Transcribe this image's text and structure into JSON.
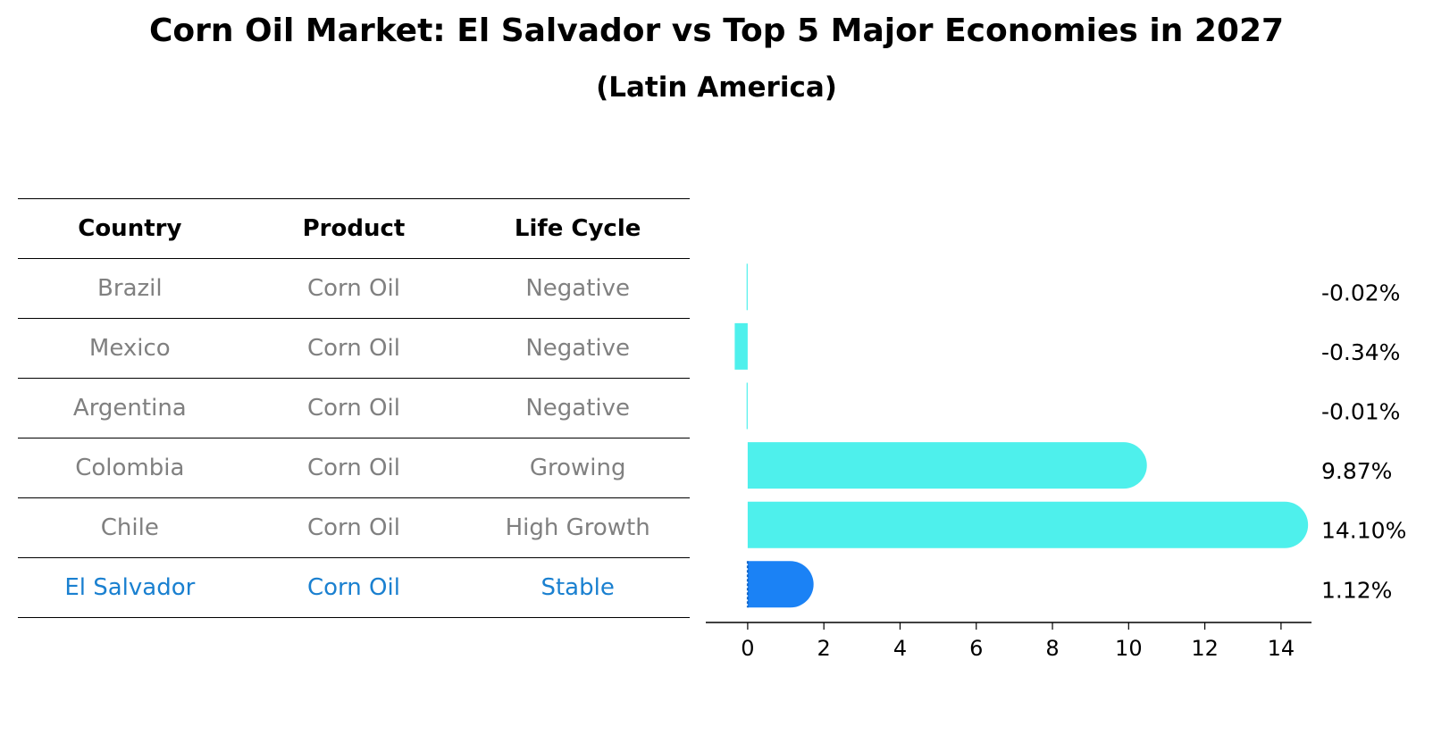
{
  "title": "Corn Oil Market: El Salvador vs Top 5 Major Economies in 2027",
  "subtitle": "(Latin America)",
  "table": {
    "headers": [
      "Country",
      "Product",
      "Life Cycle"
    ],
    "rows": [
      {
        "country": "Brazil",
        "product": "Corn Oil",
        "life_cycle": "Negative"
      },
      {
        "country": "Mexico",
        "product": "Corn Oil",
        "life_cycle": "Negative"
      },
      {
        "country": "Argentina",
        "product": "Corn Oil",
        "life_cycle": "Negative"
      },
      {
        "country": "Colombia",
        "product": "Corn Oil",
        "life_cycle": "Growing"
      },
      {
        "country": "Chile",
        "product": "Corn Oil",
        "life_cycle": "High Growth"
      },
      {
        "country": "El Salvador",
        "product": "Corn Oil",
        "life_cycle": "Stable"
      }
    ]
  },
  "colors": {
    "bar": "#4ef0ec",
    "highlight": "#1b82f5",
    "highlight_text": "#1a80d0",
    "muted_text": "#808080"
  },
  "chart_data": {
    "type": "bar",
    "orientation": "horizontal",
    "categories": [
      "Brazil",
      "Mexico",
      "Argentina",
      "Colombia",
      "Chile",
      "El Salvador"
    ],
    "values": [
      -0.02,
      -0.34,
      -0.01,
      9.87,
      14.1,
      1.12
    ],
    "value_labels": [
      "-0.02%",
      "-0.34%",
      "-0.01%",
      "9.87%",
      "14.10%",
      "1.12%"
    ],
    "highlight": "El Salvador",
    "xlim": [
      -1.1,
      14.8
    ],
    "xticks": [
      0,
      2,
      4,
      6,
      8,
      10,
      12,
      14
    ],
    "grid": false
  }
}
